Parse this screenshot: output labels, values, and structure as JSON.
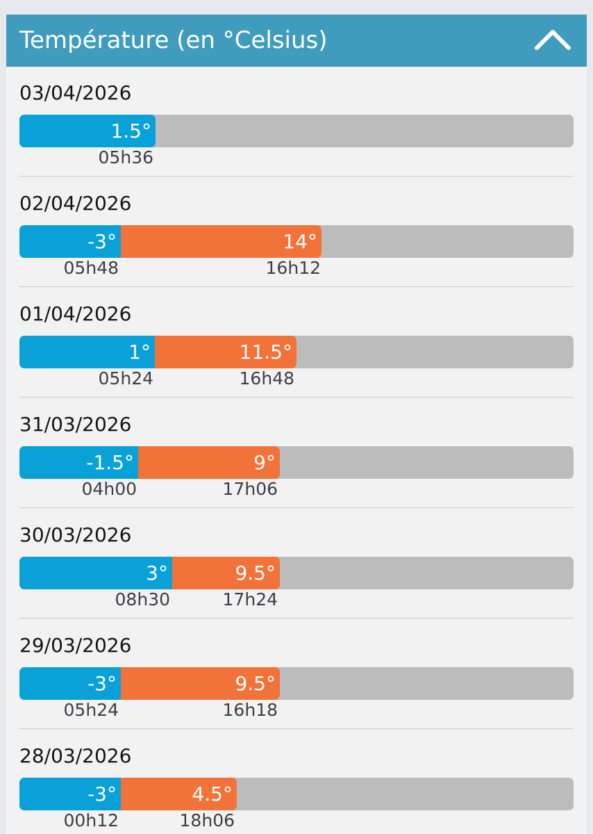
{
  "header": {
    "title": "Température (en °Celsius)",
    "collapse_icon": "chevron-up-icon"
  },
  "colors": {
    "header": "#3f9cbc",
    "min_segment": "#0aa1d8",
    "max_segment": "#f2733a",
    "track": "#bcbcbc"
  },
  "days": [
    {
      "date": "03/04/2026",
      "min": {
        "label": "1.5°",
        "time": "05h36"
      }
    },
    {
      "date": "02/04/2026",
      "min": {
        "label": "-3°",
        "time": "05h48"
      },
      "max": {
        "label": "14°",
        "time": "16h12"
      }
    },
    {
      "date": "01/04/2026",
      "min": {
        "label": "1°",
        "time": "05h24"
      },
      "max": {
        "label": "11.5°",
        "time": "16h48"
      }
    },
    {
      "date": "31/03/2026",
      "min": {
        "label": "-1.5°",
        "time": "04h00"
      },
      "max": {
        "label": "9°",
        "time": "17h06"
      }
    },
    {
      "date": "30/03/2026",
      "min": {
        "label": "3°",
        "time": "08h30"
      },
      "max": {
        "label": "9.5°",
        "time": "17h24"
      }
    },
    {
      "date": "29/03/2026",
      "min": {
        "label": "-3°",
        "time": "05h24"
      },
      "max": {
        "label": "9.5°",
        "time": "16h18"
      }
    },
    {
      "date": "28/03/2026",
      "min": {
        "label": "-3°",
        "time": "00h12"
      },
      "max": {
        "label": "4.5°",
        "time": "18h06"
      }
    }
  ]
}
